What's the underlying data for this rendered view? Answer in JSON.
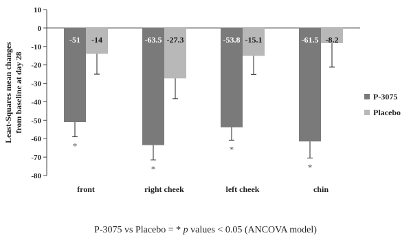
{
  "chart_data": {
    "type": "bar",
    "ylabel": "Least-Squares mean changes from baseline at day 28",
    "ylim": [
      -80,
      10
    ],
    "yticks": [
      10,
      0,
      -10,
      -20,
      -30,
      -40,
      -50,
      -60,
      -70,
      -80
    ],
    "grid": false,
    "legend_position": "right",
    "categories": [
      "front",
      "right cheek",
      "left cheek",
      "chin"
    ],
    "series": [
      {
        "name": "P-3075",
        "color": "#7a7a7a",
        "values": [
          -51,
          -63.5,
          -53.8,
          -61.5
        ],
        "labels": [
          "-51",
          "-63.5",
          "-53.8",
          "-61.5"
        ],
        "error": [
          8,
          8,
          7,
          9
        ],
        "label_color": "#ffffff"
      },
      {
        "name": "Placebo",
        "color": "#b8b8b8",
        "values": [
          -14,
          -27.3,
          -15.1,
          -8.2
        ],
        "labels": [
          "-14",
          "-27.3",
          "-15.1",
          "-8.2"
        ],
        "error": [
          11,
          11,
          10,
          13
        ],
        "label_color": "#1a1a1a"
      }
    ],
    "significance_marker": "*",
    "significant": [
      true,
      true,
      true,
      true
    ]
  },
  "footnote": {
    "prefix": "P-3075 vs Placebo = * ",
    "italic": "p",
    "suffix": " values < 0.05 (ANCOVA model)"
  }
}
